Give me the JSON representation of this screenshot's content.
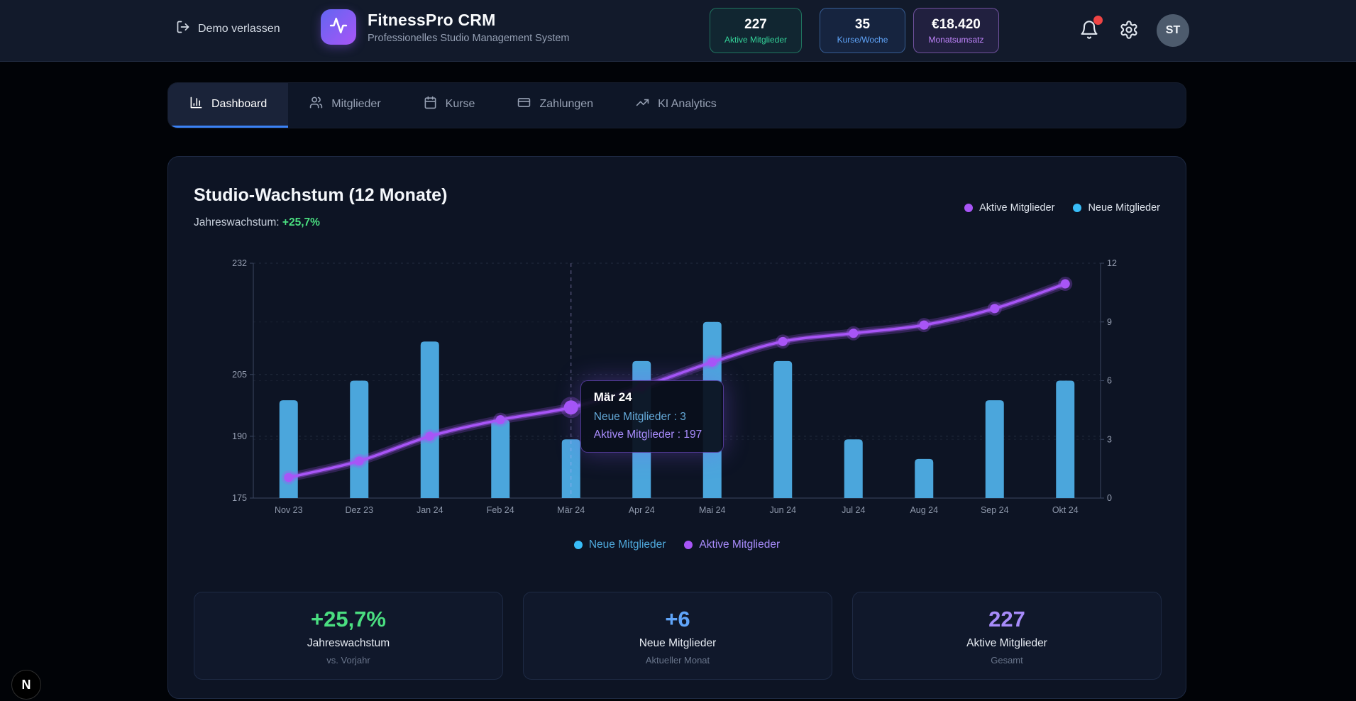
{
  "header": {
    "exit_label": "Demo verlassen",
    "app_title": "FitnessPro CRM",
    "app_subtitle": "Professionelles Studio Management System",
    "stats": [
      {
        "value": "227",
        "label": "Aktive Mitglieder",
        "color": "#34d399"
      },
      {
        "value": "35",
        "label": "Kurse/Woche",
        "color": "#60a5fa"
      },
      {
        "value": "€18.420",
        "label": "Monatsumsatz",
        "color": "#c084fc"
      }
    ],
    "notification_badge": true,
    "avatar_initials": "ST"
  },
  "tabs": [
    {
      "label": "Dashboard",
      "active": true
    },
    {
      "label": "Mitglieder",
      "active": false
    },
    {
      "label": "Kurse",
      "active": false
    },
    {
      "label": "Zahlungen",
      "active": false
    },
    {
      "label": "KI Analytics",
      "active": false
    }
  ],
  "chart_card": {
    "title": "Studio-Wachstum (12 Monate)",
    "subtitle_label": "Jahreswachstum: ",
    "subtitle_value": "+25,7%",
    "legend_top": [
      {
        "label": "Aktive Mitglieder",
        "color": "#a855f7"
      },
      {
        "label": "Neue Mitglieder",
        "color": "#38bdf8"
      }
    ],
    "legend_bottom": [
      {
        "label": "Neue Mitglieder",
        "color": "#38bdf8",
        "text_color": "#4fa9dc"
      },
      {
        "label": "Aktive Mitglieder",
        "color": "#a855f7",
        "text_color": "#a78bfa"
      }
    ]
  },
  "chart_data": {
    "type": "bar",
    "subtype": "bar+line dual axis",
    "title": "Studio-Wachstum (12 Monate)",
    "categories": [
      "Nov 23",
      "Dez 23",
      "Jan 24",
      "Feb 24",
      "Mär 24",
      "Apr 24",
      "Mai 24",
      "Jun 24",
      "Jul 24",
      "Aug 24",
      "Sep 24",
      "Okt 24"
    ],
    "series": [
      {
        "name": "Neue Mitglieder",
        "type": "bar",
        "axis": "right",
        "color": "#4BA6DC",
        "values": [
          5,
          6,
          8,
          4,
          3,
          7,
          9,
          7,
          3,
          2,
          5,
          6
        ]
      },
      {
        "name": "Aktive Mitglieder",
        "type": "line",
        "axis": "left",
        "color": "#A855F7",
        "values": [
          180,
          184,
          190,
          194,
          197,
          202,
          208,
          213,
          215,
          217,
          221,
          227
        ]
      }
    ],
    "left_axis": {
      "range": [
        175,
        232
      ],
      "ticks": [
        175,
        190,
        205,
        232
      ]
    },
    "right_axis": {
      "range": [
        0,
        12
      ],
      "ticks": [
        0,
        3,
        6,
        9,
        12
      ]
    },
    "grid": true,
    "tooltip": {
      "index": 4,
      "title": "Mär 24",
      "lines": [
        {
          "text": "Neue Mitglieder : 3",
          "color": "#64a9d8"
        },
        {
          "text": "Aktive Mitglieder : 197",
          "color": "#a78bfa"
        }
      ]
    }
  },
  "stat_cards": [
    {
      "value": "+25,7%",
      "color": "#4ade80",
      "label": "Jahreswachstum",
      "sublabel": "vs. Vorjahr"
    },
    {
      "value": "+6",
      "color": "#60a5fa",
      "label": "Neue Mitglieder",
      "sublabel": "Aktueller Monat"
    },
    {
      "value": "227",
      "color": "#a78bfa",
      "label": "Aktive Mitglieder",
      "sublabel": "Gesamt"
    }
  ],
  "dev_badge": {
    "letter": "N"
  }
}
